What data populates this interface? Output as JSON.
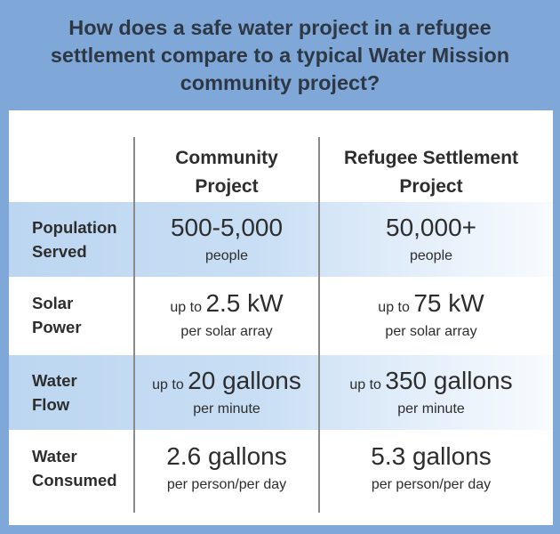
{
  "header": {
    "title_lines": [
      "How does a safe water project in a refugee",
      "settlement compare to a typical Water Mission",
      "community project?"
    ]
  },
  "columns": [
    {
      "lines": [
        "Community",
        "Project"
      ]
    },
    {
      "lines": [
        "Refugee Settlement",
        "Project"
      ]
    }
  ],
  "rows": [
    {
      "label_lines": [
        "Population",
        "Served"
      ],
      "community": {
        "prefix": "",
        "value": "500-5,000",
        "unit": "people"
      },
      "refugee": {
        "prefix": "",
        "value": "50,000+",
        "unit": "people"
      }
    },
    {
      "label_lines": [
        "Solar",
        "Power"
      ],
      "community": {
        "prefix": "up to ",
        "value": "2.5 kW",
        "unit": "per solar array"
      },
      "refugee": {
        "prefix": "up to ",
        "value": "75 kW",
        "unit": "per solar array"
      }
    },
    {
      "label_lines": [
        "Water",
        "Flow"
      ],
      "community": {
        "prefix": "up to ",
        "value": "20 gallons",
        "unit": "per minute"
      },
      "refugee": {
        "prefix": "up to ",
        "value": "350 gallons",
        "unit": "per minute"
      }
    },
    {
      "label_lines": [
        "Water",
        "Consumed"
      ],
      "community": {
        "prefix": "",
        "value": "2.6 gallons",
        "unit": "per person/per day"
      },
      "refugee": {
        "prefix": "",
        "value": "5.3 gallons",
        "unit": "per person/per day"
      }
    }
  ],
  "colors": {
    "frame_blue": "#7fa8d9",
    "row_shade": "#bcd6f1",
    "title_text": "#2e3845",
    "body_text": "#2d2d2d",
    "divider": "#8a8a8a"
  }
}
